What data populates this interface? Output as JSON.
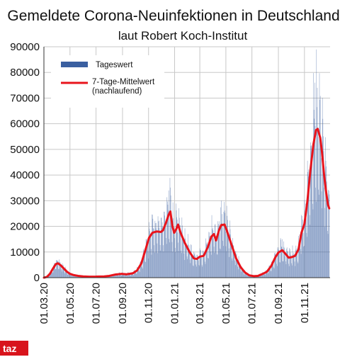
{
  "colors": {
    "bars": "#3a5fa0",
    "line": "#e8141c",
    "grid": "#c8c8c8",
    "logo_bg": "#d8141c",
    "logo_text": "#ffffff"
  },
  "logo": {
    "text": "taz"
  },
  "chart_data": {
    "type": "bar+line",
    "title": "Gemeldete Corona-Neuinfektionen in Deutschland",
    "subtitle": "laut Robert Koch-Institut",
    "ylim": [
      0,
      90000
    ],
    "yticks": [
      0,
      10000,
      20000,
      30000,
      40000,
      50000,
      60000,
      70000,
      80000,
      90000
    ],
    "xlim": [
      "2020-03-01",
      "2021-12-31"
    ],
    "xticks": [
      "01.03.20",
      "01.05.20",
      "01.07.20",
      "01.09.20",
      "01.11.20",
      "01.01.21",
      "01.03.21",
      "01.05.21",
      "01.07.21",
      "01.09.21",
      "01.11.21"
    ],
    "grid": true,
    "legend": {
      "placement": "top-left",
      "entries": [
        {
          "label": "Tageswert",
          "type": "bar",
          "color": "#3a5fa0"
        },
        {
          "label": "7-Tage-Mittelwert (nachlaufend)",
          "type": "line",
          "color": "#e8141c"
        }
      ]
    },
    "series": [
      {
        "name": "7-Tage-Mittelwert (nachlaufend)",
        "type": "line",
        "color": "#e8141c",
        "points": [
          [
            "2020-03-01",
            0
          ],
          [
            "2020-03-08",
            300
          ],
          [
            "2020-03-15",
            1500
          ],
          [
            "2020-03-22",
            3500
          ],
          [
            "2020-03-29",
            5300
          ],
          [
            "2020-04-03",
            5600
          ],
          [
            "2020-04-10",
            4700
          ],
          [
            "2020-04-17",
            3500
          ],
          [
            "2020-04-24",
            2300
          ],
          [
            "2020-05-01",
            1500
          ],
          [
            "2020-05-10",
            1000
          ],
          [
            "2020-05-20",
            700
          ],
          [
            "2020-06-01",
            500
          ],
          [
            "2020-06-15",
            380
          ],
          [
            "2020-07-01",
            400
          ],
          [
            "2020-07-20",
            500
          ],
          [
            "2020-08-01",
            700
          ],
          [
            "2020-08-15",
            1200
          ],
          [
            "2020-08-30",
            1500
          ],
          [
            "2020-09-10",
            1300
          ],
          [
            "2020-09-25",
            1700
          ],
          [
            "2020-10-05",
            2800
          ],
          [
            "2020-10-15",
            5500
          ],
          [
            "2020-10-25",
            11000
          ],
          [
            "2020-11-02",
            15500
          ],
          [
            "2020-11-10",
            17500
          ],
          [
            "2020-11-20",
            18000
          ],
          [
            "2020-11-30",
            17800
          ],
          [
            "2020-12-05",
            18500
          ],
          [
            "2020-12-12",
            21500
          ],
          [
            "2020-12-18",
            24500
          ],
          [
            "2020-12-22",
            25800
          ],
          [
            "2020-12-27",
            20000
          ],
          [
            "2020-12-31",
            17500
          ],
          [
            "2021-01-05",
            19000
          ],
          [
            "2021-01-09",
            20700
          ],
          [
            "2021-01-15",
            17500
          ],
          [
            "2021-01-25",
            13500
          ],
          [
            "2021-02-05",
            10000
          ],
          [
            "2021-02-15",
            7500
          ],
          [
            "2021-02-22",
            7300
          ],
          [
            "2021-03-01",
            8200
          ],
          [
            "2021-03-10",
            8500
          ],
          [
            "2021-03-20",
            12000
          ],
          [
            "2021-03-28",
            16000
          ],
          [
            "2021-04-03",
            17000
          ],
          [
            "2021-04-08",
            14500
          ],
          [
            "2021-04-15",
            18500
          ],
          [
            "2021-04-20",
            20500
          ],
          [
            "2021-04-28",
            20700
          ],
          [
            "2021-05-05",
            17500
          ],
          [
            "2021-05-15",
            12500
          ],
          [
            "2021-05-25",
            7500
          ],
          [
            "2021-06-05",
            4000
          ],
          [
            "2021-06-15",
            2000
          ],
          [
            "2021-06-25",
            900
          ],
          [
            "2021-07-05",
            600
          ],
          [
            "2021-07-15",
            700
          ],
          [
            "2021-07-25",
            1400
          ],
          [
            "2021-08-05",
            2300
          ],
          [
            "2021-08-15",
            4500
          ],
          [
            "2021-08-25",
            8000
          ],
          [
            "2021-09-01",
            9800
          ],
          [
            "2021-09-10",
            10700
          ],
          [
            "2021-09-18",
            9200
          ],
          [
            "2021-09-25",
            7800
          ],
          [
            "2021-10-02",
            8000
          ],
          [
            "2021-10-10",
            8500
          ],
          [
            "2021-10-18",
            11000
          ],
          [
            "2021-10-25",
            17500
          ],
          [
            "2021-11-01",
            21000
          ],
          [
            "2021-11-08",
            30000
          ],
          [
            "2021-11-15",
            42000
          ],
          [
            "2021-11-22",
            52000
          ],
          [
            "2021-11-28",
            57500
          ],
          [
            "2021-12-02",
            58000
          ],
          [
            "2021-12-08",
            54500
          ],
          [
            "2021-12-12",
            49000
          ],
          [
            "2021-12-17",
            40000
          ],
          [
            "2021-12-22",
            33000
          ],
          [
            "2021-12-26",
            28500
          ],
          [
            "2021-12-29",
            27000
          ]
        ]
      },
      {
        "name": "Tageswert",
        "type": "bar",
        "color": "#3a5fa0",
        "daily_values_source": "daily bars vary around the 7-day mean; peaks ≈ 6500 (Apr 2020), ≈ 34000 (Dec 2020), ≈ 30000 (Apr 2021), ≈ 15000 (Sep 2021), ≈ 76000 (Nov 2021)",
        "peaks": [
          [
            "2020-04-03",
            6500
          ],
          [
            "2020-12-18",
            34000
          ],
          [
            "2021-04-20",
            30000
          ],
          [
            "2021-09-10",
            15000
          ],
          [
            "2021-11-25",
            76000
          ],
          [
            "2021-12-01",
            74000
          ]
        ]
      }
    ]
  }
}
